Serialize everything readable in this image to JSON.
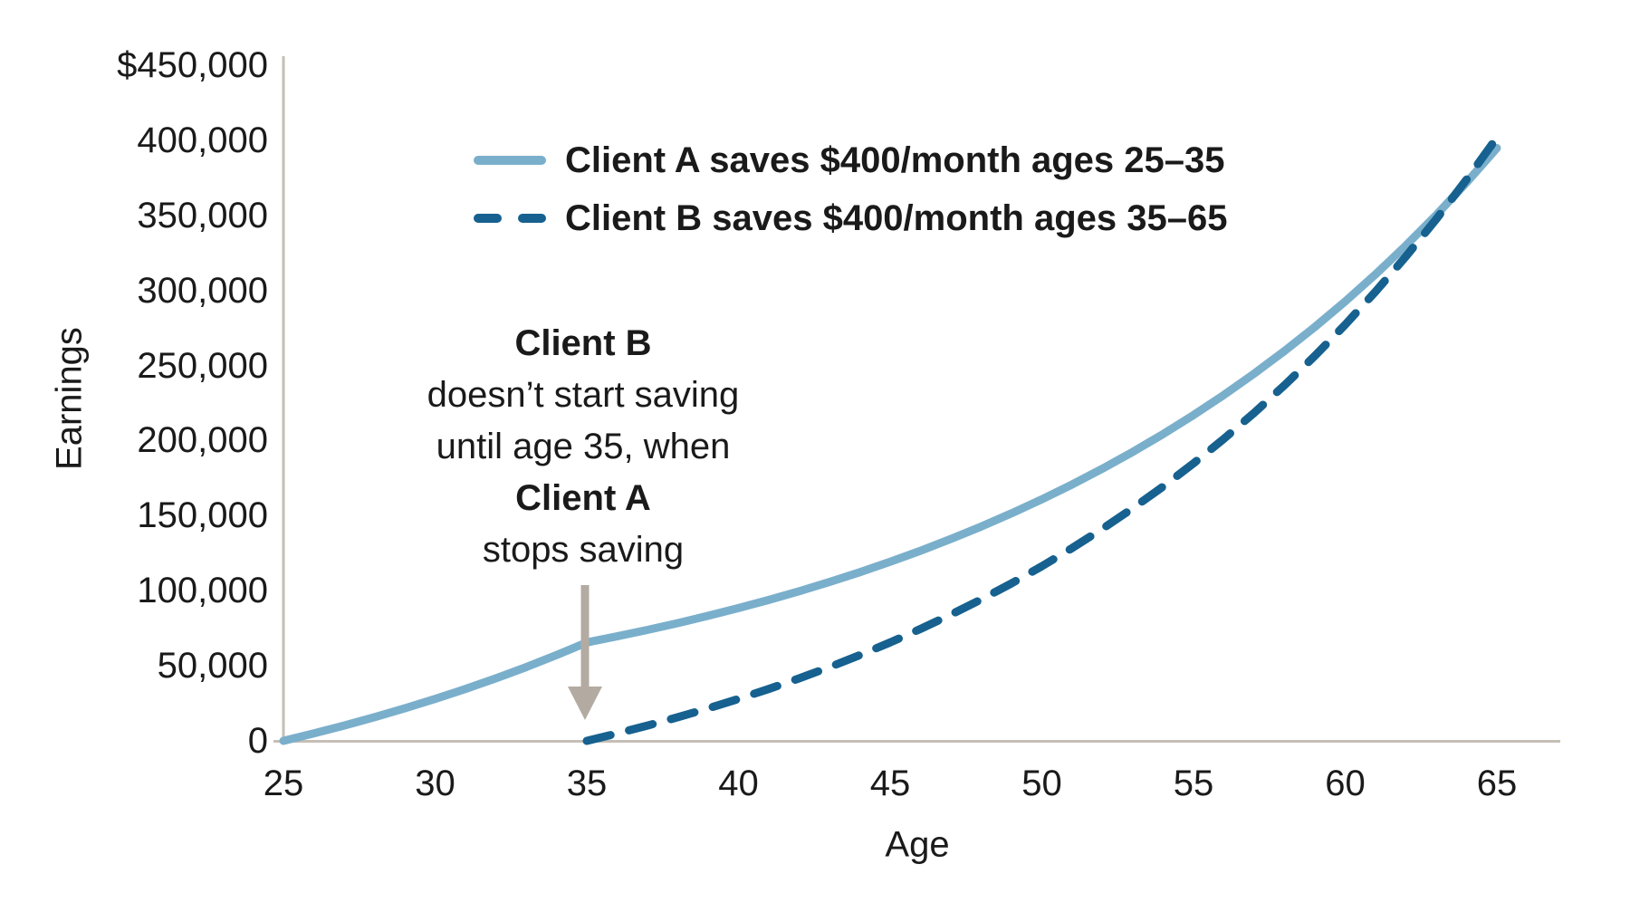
{
  "chart_data": {
    "type": "line",
    "xlabel": "Age",
    "ylabel": "Earnings",
    "xlim": [
      25,
      65
    ],
    "ylim": [
      0,
      450000
    ],
    "grid": false,
    "legend_position": "top-left-inside",
    "x": [
      25,
      26,
      27,
      28,
      29,
      30,
      31,
      32,
      33,
      34,
      35,
      36,
      37,
      38,
      39,
      40,
      41,
      42,
      43,
      44,
      45,
      46,
      47,
      48,
      49,
      50,
      51,
      52,
      53,
      54,
      55,
      56,
      57,
      58,
      59,
      60,
      61,
      62,
      63,
      64,
      65
    ],
    "series": [
      {
        "name": "Client A saves $400/month ages 25–35",
        "color": "#7AAFCB",
        "dash": "solid",
        "values": [
          0,
          4934,
          10173,
          15734,
          21639,
          27908,
          34564,
          41630,
          49131,
          57096,
          65552,
          69595,
          73888,
          78445,
          83283,
          88422,
          93875,
          99664,
          105811,
          112337,
          119265,
          126622,
          134432,
          142723,
          151525,
          160871,
          170793,
          181327,
          192511,
          204385,
          216991,
          230374,
          244584,
          259670,
          275686,
          292690,
          310743,
          329907,
          350254,
          371857,
          394796
        ]
      },
      {
        "name": "Client B saves $400/month ages 35–65",
        "color": "#16618F",
        "dash": "dashed",
        "values": [
          null,
          null,
          null,
          null,
          null,
          null,
          null,
          null,
          null,
          null,
          0,
          4934,
          10173,
          15734,
          21639,
          27908,
          34564,
          41630,
          49131,
          57096,
          65552,
          74529,
          84060,
          94179,
          104922,
          116328,
          128437,
          141293,
          154943,
          169435,
          184816,
          201150,
          218490,
          236901,
          256446,
          277198,
          299227,
          322619,
          347451,
          373816,
          401806
        ]
      }
    ],
    "x_tick_labels": [
      "25",
      "30",
      "35",
      "40",
      "45",
      "50",
      "55",
      "60",
      "65"
    ],
    "x_tick_values": [
      25,
      30,
      35,
      40,
      45,
      50,
      55,
      60,
      65
    ],
    "y_tick_labels": [
      "$450,000",
      "400,000",
      "350,000",
      "300,000",
      "250,000",
      "200,000",
      "150,000",
      "100,000",
      "50,000",
      "0"
    ],
    "y_tick_values": [
      450000,
      400000,
      350000,
      300000,
      250000,
      200000,
      150000,
      100000,
      50000,
      0
    ]
  },
  "annotation": {
    "line1": "Client B",
    "line2": "doesn’t start saving",
    "line3": "until age 35, when",
    "line4": "Client A",
    "line5": "stops saving"
  },
  "colors": {
    "client_a": "#7AAFCB",
    "client_b": "#16618F",
    "axis": "#C6BFB6",
    "arrow": "#B3ABA2",
    "text": "#1A1A1A"
  }
}
